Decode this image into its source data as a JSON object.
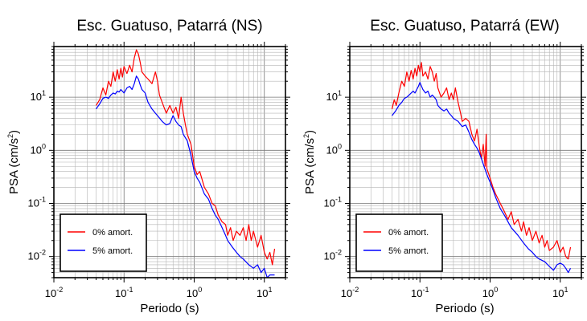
{
  "chart_data": [
    {
      "type": "line",
      "title": "Esc. Guatuso, Patarrá (NS)",
      "xlabel": "Periodo (s)",
      "ylabel_main": "PSA (cm/s",
      "ylabel_sup": "2",
      "ylabel_close": ")",
      "xscale": "log",
      "yscale": "log",
      "xlim": [
        0.01,
        20
      ],
      "ylim": [
        0.004,
        90
      ],
      "grid": true,
      "legend_position": "bottom-left",
      "x_ticks": [
        {
          "base": "10",
          "exp": "-2"
        },
        {
          "base": "10",
          "exp": "-1"
        },
        {
          "base": "10",
          "exp": "0"
        },
        {
          "base": "10",
          "exp": "1"
        }
      ],
      "y_ticks": [
        {
          "base": "10",
          "exp": "-2"
        },
        {
          "base": "10",
          "exp": "-1"
        },
        {
          "base": "10",
          "exp": "0"
        },
        {
          "base": "10",
          "exp": "1"
        }
      ],
      "series": [
        {
          "name": "0% amort.",
          "color": "#ff0000",
          "points": [
            [
              0.04,
              7
            ],
            [
              0.045,
              9
            ],
            [
              0.05,
              15
            ],
            [
              0.055,
              11
            ],
            [
              0.06,
              20
            ],
            [
              0.065,
              16
            ],
            [
              0.07,
              30
            ],
            [
              0.075,
              20
            ],
            [
              0.08,
              33
            ],
            [
              0.085,
              22
            ],
            [
              0.09,
              35
            ],
            [
              0.095,
              24
            ],
            [
              0.1,
              38
            ],
            [
              0.11,
              28
            ],
            [
              0.12,
              40
            ],
            [
              0.13,
              30
            ],
            [
              0.14,
              55
            ],
            [
              0.15,
              78
            ],
            [
              0.16,
              65
            ],
            [
              0.17,
              45
            ],
            [
              0.18,
              30
            ],
            [
              0.2,
              25
            ],
            [
              0.22,
              22
            ],
            [
              0.25,
              18
            ],
            [
              0.28,
              30
            ],
            [
              0.3,
              20
            ],
            [
              0.32,
              11
            ],
            [
              0.35,
              8
            ],
            [
              0.38,
              6
            ],
            [
              0.4,
              5
            ],
            [
              0.45,
              7
            ],
            [
              0.5,
              5
            ],
            [
              0.55,
              6.5
            ],
            [
              0.6,
              4
            ],
            [
              0.65,
              10
            ],
            [
              0.7,
              5
            ],
            [
              0.75,
              3
            ],
            [
              0.8,
              2
            ],
            [
              0.9,
              1.3
            ],
            [
              1.0,
              0.5
            ],
            [
              1.1,
              0.35
            ],
            [
              1.2,
              0.4
            ],
            [
              1.4,
              0.2
            ],
            [
              1.6,
              0.15
            ],
            [
              1.8,
              0.1
            ],
            [
              2.0,
              0.09
            ],
            [
              2.2,
              0.06
            ],
            [
              2.5,
              0.045
            ],
            [
              2.8,
              0.04
            ],
            [
              3.0,
              0.025
            ],
            [
              3.3,
              0.035
            ],
            [
              3.6,
              0.02
            ],
            [
              4.0,
              0.03
            ],
            [
              4.5,
              0.025
            ],
            [
              5.0,
              0.035
            ],
            [
              5.5,
              0.02
            ],
            [
              6.0,
              0.04
            ],
            [
              6.5,
              0.02
            ],
            [
              7.0,
              0.03
            ],
            [
              8.0,
              0.015
            ],
            [
              9.0,
              0.025
            ],
            [
              10.0,
              0.012
            ],
            [
              11.0,
              0.009
            ],
            [
              12.0,
              0.012
            ],
            [
              13.0,
              0.007
            ],
            [
              14.0,
              0.014
            ]
          ]
        },
        {
          "name": "5% amort.",
          "color": "#0000ff",
          "points": [
            [
              0.04,
              6
            ],
            [
              0.045,
              7.5
            ],
            [
              0.05,
              9.5
            ],
            [
              0.055,
              10
            ],
            [
              0.06,
              9.5
            ],
            [
              0.065,
              11
            ],
            [
              0.07,
              12
            ],
            [
              0.075,
              11.5
            ],
            [
              0.08,
              13
            ],
            [
              0.085,
              12.5
            ],
            [
              0.09,
              14
            ],
            [
              0.1,
              12
            ],
            [
              0.11,
              15
            ],
            [
              0.12,
              16
            ],
            [
              0.13,
              14
            ],
            [
              0.14,
              18
            ],
            [
              0.15,
              25
            ],
            [
              0.16,
              22
            ],
            [
              0.17,
              17
            ],
            [
              0.18,
              14
            ],
            [
              0.2,
              12
            ],
            [
              0.22,
              8
            ],
            [
              0.25,
              6
            ],
            [
              0.28,
              5
            ],
            [
              0.3,
              4.5
            ],
            [
              0.35,
              3.5
            ],
            [
              0.4,
              3
            ],
            [
              0.45,
              3.2
            ],
            [
              0.5,
              4.5
            ],
            [
              0.55,
              3.5
            ],
            [
              0.6,
              3
            ],
            [
              0.65,
              2.8
            ],
            [
              0.7,
              2
            ],
            [
              0.8,
              1.5
            ],
            [
              0.9,
              0.8
            ],
            [
              1.0,
              0.4
            ],
            [
              1.1,
              0.3
            ],
            [
              1.2,
              0.25
            ],
            [
              1.4,
              0.15
            ],
            [
              1.6,
              0.12
            ],
            [
              1.8,
              0.08
            ],
            [
              2.0,
              0.06
            ],
            [
              2.2,
              0.05
            ],
            [
              2.5,
              0.035
            ],
            [
              2.8,
              0.025
            ],
            [
              3.0,
              0.02
            ],
            [
              3.5,
              0.015
            ],
            [
              4.0,
              0.012
            ],
            [
              4.5,
              0.01
            ],
            [
              5.0,
              0.009
            ],
            [
              6.0,
              0.007
            ],
            [
              7.0,
              0.006
            ],
            [
              8.0,
              0.007
            ],
            [
              9.0,
              0.005
            ],
            [
              10.0,
              0.006
            ],
            [
              11.0,
              0.004
            ],
            [
              12.0,
              0.0045
            ],
            [
              14.0,
              0.0045
            ]
          ]
        }
      ]
    },
    {
      "type": "line",
      "title": "Esc. Guatuso, Patarrá (EW)",
      "xlabel": "Periodo (s)",
      "ylabel_main": "PSA (cm/s",
      "ylabel_sup": "2",
      "ylabel_close": ")",
      "xscale": "log",
      "yscale": "log",
      "xlim": [
        0.01,
        20
      ],
      "ylim": [
        0.004,
        90
      ],
      "grid": true,
      "legend_position": "bottom-left",
      "x_ticks": [
        {
          "base": "10",
          "exp": "-2"
        },
        {
          "base": "10",
          "exp": "-1"
        },
        {
          "base": "10",
          "exp": "0"
        },
        {
          "base": "10",
          "exp": "1"
        }
      ],
      "y_ticks": [
        {
          "base": "10",
          "exp": "-2"
        },
        {
          "base": "10",
          "exp": "-1"
        },
        {
          "base": "10",
          "exp": "0"
        },
        {
          "base": "10",
          "exp": "1"
        }
      ],
      "series": [
        {
          "name": "0% amort.",
          "color": "#ff0000",
          "points": [
            [
              0.04,
              6
            ],
            [
              0.043,
              9
            ],
            [
              0.046,
              7
            ],
            [
              0.05,
              12
            ],
            [
              0.055,
              20
            ],
            [
              0.06,
              16
            ],
            [
              0.065,
              30
            ],
            [
              0.07,
              20
            ],
            [
              0.075,
              32
            ],
            [
              0.08,
              22
            ],
            [
              0.085,
              35
            ],
            [
              0.09,
              25
            ],
            [
              0.095,
              40
            ],
            [
              0.1,
              30
            ],
            [
              0.105,
              45
            ],
            [
              0.11,
              25
            ],
            [
              0.12,
              30
            ],
            [
              0.13,
              22
            ],
            [
              0.14,
              38
            ],
            [
              0.15,
              30
            ],
            [
              0.16,
              20
            ],
            [
              0.17,
              28
            ],
            [
              0.18,
              15
            ],
            [
              0.2,
              10
            ],
            [
              0.22,
              12
            ],
            [
              0.24,
              15
            ],
            [
              0.26,
              9
            ],
            [
              0.28,
              12
            ],
            [
              0.3,
              9
            ],
            [
              0.32,
              15
            ],
            [
              0.35,
              8
            ],
            [
              0.38,
              5
            ],
            [
              0.4,
              3.5
            ],
            [
              0.45,
              4
            ],
            [
              0.5,
              3.5
            ],
            [
              0.55,
              2
            ],
            [
              0.6,
              1.5
            ],
            [
              0.65,
              2.5
            ],
            [
              0.7,
              1.2
            ],
            [
              0.75,
              0.7
            ],
            [
              0.8,
              1.3
            ],
            [
              0.85,
              0.5
            ],
            [
              0.88,
              2
            ],
            [
              0.9,
              0.45
            ],
            [
              1.0,
              0.3
            ],
            [
              1.1,
              0.2
            ],
            [
              1.2,
              0.15
            ],
            [
              1.4,
              0.1
            ],
            [
              1.6,
              0.07
            ],
            [
              1.8,
              0.05
            ],
            [
              2.0,
              0.07
            ],
            [
              2.2,
              0.04
            ],
            [
              2.5,
              0.05
            ],
            [
              2.8,
              0.03
            ],
            [
              3.0,
              0.045
            ],
            [
              3.3,
              0.025
            ],
            [
              3.6,
              0.035
            ],
            [
              4.0,
              0.02
            ],
            [
              4.5,
              0.03
            ],
            [
              5.0,
              0.018
            ],
            [
              5.5,
              0.025
            ],
            [
              6.0,
              0.015
            ],
            [
              6.5,
              0.02
            ],
            [
              7.0,
              0.013
            ],
            [
              8.0,
              0.015
            ],
            [
              9.0,
              0.02
            ],
            [
              10.0,
              0.012
            ],
            [
              11.0,
              0.015
            ],
            [
              12.0,
              0.01
            ],
            [
              13.0,
              0.009
            ],
            [
              14.0,
              0.015
            ]
          ]
        },
        {
          "name": "5% amort.",
          "color": "#0000ff",
          "points": [
            [
              0.04,
              4.5
            ],
            [
              0.045,
              5.5
            ],
            [
              0.05,
              7
            ],
            [
              0.055,
              8
            ],
            [
              0.06,
              9.5
            ],
            [
              0.065,
              10
            ],
            [
              0.07,
              11
            ],
            [
              0.075,
              12
            ],
            [
              0.08,
              13
            ],
            [
              0.085,
              12
            ],
            [
              0.09,
              14
            ],
            [
              0.095,
              16
            ],
            [
              0.1,
              19
            ],
            [
              0.11,
              14
            ],
            [
              0.12,
              12
            ],
            [
              0.13,
              13
            ],
            [
              0.14,
              10
            ],
            [
              0.15,
              11
            ],
            [
              0.16,
              10
            ],
            [
              0.17,
              9
            ],
            [
              0.18,
              7
            ],
            [
              0.2,
              6
            ],
            [
              0.22,
              5.5
            ],
            [
              0.24,
              6
            ],
            [
              0.26,
              5
            ],
            [
              0.28,
              4.5
            ],
            [
              0.3,
              4
            ],
            [
              0.35,
              3.5
            ],
            [
              0.4,
              2.8
            ],
            [
              0.45,
              3
            ],
            [
              0.5,
              2.2
            ],
            [
              0.55,
              1.6
            ],
            [
              0.6,
              1.3
            ],
            [
              0.65,
              1.1
            ],
            [
              0.7,
              0.9
            ],
            [
              0.75,
              0.7
            ],
            [
              0.8,
              0.55
            ],
            [
              0.9,
              0.35
            ],
            [
              1.0,
              0.25
            ],
            [
              1.1,
              0.18
            ],
            [
              1.2,
              0.13
            ],
            [
              1.4,
              0.08
            ],
            [
              1.6,
              0.06
            ],
            [
              1.8,
              0.045
            ],
            [
              2.0,
              0.035
            ],
            [
              2.5,
              0.025
            ],
            [
              3.0,
              0.018
            ],
            [
              3.5,
              0.014
            ],
            [
              4.0,
              0.012
            ],
            [
              4.5,
              0.01
            ],
            [
              5.0,
              0.009
            ],
            [
              6.0,
              0.008
            ],
            [
              7.0,
              0.0065
            ],
            [
              8.0,
              0.0055
            ],
            [
              9.0,
              0.007
            ],
            [
              10.0,
              0.0075
            ],
            [
              11.0,
              0.007
            ],
            [
              12.0,
              0.006
            ],
            [
              13.0,
              0.005
            ],
            [
              14.0,
              0.006
            ]
          ]
        }
      ]
    }
  ]
}
